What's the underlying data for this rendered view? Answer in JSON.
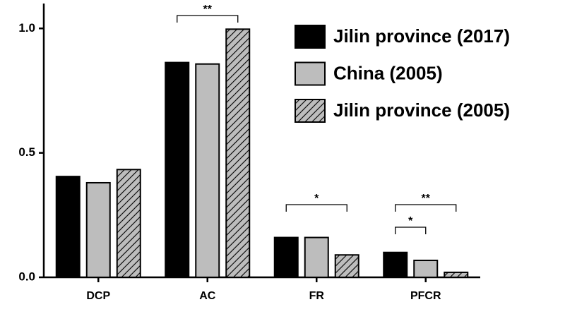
{
  "chart_data": {
    "type": "bar",
    "categories": [
      "DCP",
      "AC",
      "FR",
      "PFCR"
    ],
    "series": [
      {
        "name": "Jilin province (2017)",
        "color": "#000000",
        "values": [
          0.405,
          0.863,
          0.16,
          0.1
        ]
      },
      {
        "name": "China (2005)",
        "color": "#bdbdbd",
        "values": [
          0.38,
          0.857,
          0.16,
          0.068
        ]
      },
      {
        "name": "Jilin province (2005)",
        "color": "#bdbdbd",
        "pattern": "hatch",
        "values": [
          0.433,
          0.997,
          0.09,
          0.02
        ]
      }
    ],
    "ylim": [
      0,
      1.1
    ],
    "yticks": [
      {
        "value": 0,
        "label": "0.0"
      },
      {
        "value": 0.5,
        "label": "0.5"
      },
      {
        "value": 1,
        "label": "1.0"
      }
    ],
    "legend": "top-right",
    "annotations": [
      "**",
      "*",
      "**",
      "*"
    ]
  }
}
